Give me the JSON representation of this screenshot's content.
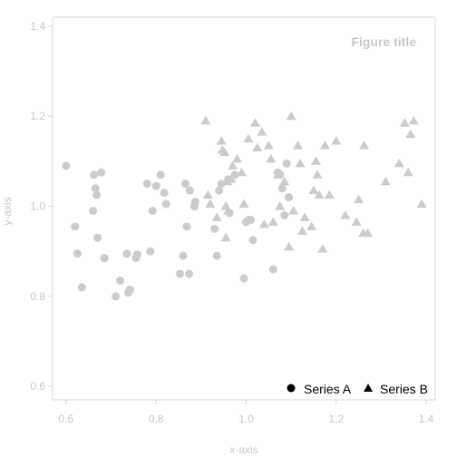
{
  "chart_data": {
    "type": "scatter",
    "title": "Figure title",
    "xlabel": "x-axis",
    "ylabel": "y-axis",
    "xlim": [
      0.57,
      1.42
    ],
    "ylim": [
      0.57,
      1.42
    ],
    "xticks": [
      0.6,
      0.8,
      1.0,
      1.2,
      1.4
    ],
    "yticks": [
      0.6,
      0.8,
      1.0,
      1.2,
      1.4
    ],
    "xtick_labels": [
      "0.6",
      "0.8",
      "1.0",
      "1.2",
      "1.4"
    ],
    "ytick_labels": [
      "0.6",
      "0.8",
      "1.0",
      "1.2",
      "1.4"
    ],
    "grid": false,
    "legend_position": "bottom-right",
    "colors": {
      "marker": "#cccccc",
      "frame": "#d8d8d8",
      "text": "#c8c8c8",
      "legend_marker": "#000000"
    },
    "series": [
      {
        "name": "Series A",
        "marker": "circle",
        "points": [
          [
            0.6,
            1.09
          ],
          [
            0.62,
            0.955
          ],
          [
            0.625,
            0.895
          ],
          [
            0.635,
            0.82
          ],
          [
            0.66,
            0.99
          ],
          [
            0.662,
            1.07
          ],
          [
            0.665,
            1.04
          ],
          [
            0.668,
            1.025
          ],
          [
            0.67,
            0.93
          ],
          [
            0.678,
            1.075
          ],
          [
            0.685,
            0.885
          ],
          [
            0.71,
            0.8
          ],
          [
            0.72,
            0.835
          ],
          [
            0.735,
            0.895
          ],
          [
            0.738,
            0.808
          ],
          [
            0.742,
            0.815
          ],
          [
            0.755,
            0.885
          ],
          [
            0.758,
            0.893
          ],
          [
            0.78,
            1.05
          ],
          [
            0.787,
            0.9
          ],
          [
            0.792,
            0.99
          ],
          [
            0.8,
            1.045
          ],
          [
            0.81,
            1.07
          ],
          [
            0.818,
            1.03
          ],
          [
            0.822,
            1.005
          ],
          [
            0.853,
            0.85
          ],
          [
            0.86,
            0.89
          ],
          [
            0.865,
            1.05
          ],
          [
            0.868,
            0.955
          ],
          [
            0.873,
            0.85
          ],
          [
            0.875,
            1.035
          ],
          [
            0.885,
            1.0
          ],
          [
            0.887,
            1.01
          ],
          [
            0.93,
            0.95
          ],
          [
            0.935,
            0.89
          ],
          [
            0.94,
            1.035
          ],
          [
            0.945,
            1.05
          ],
          [
            0.96,
            1.06
          ],
          [
            0.963,
            0.985
          ],
          [
            0.975,
            1.07
          ],
          [
            0.995,
            0.84
          ],
          [
            1.0,
            0.965
          ],
          [
            1.005,
            0.97
          ],
          [
            1.01,
            0.97
          ],
          [
            1.015,
            0.925
          ],
          [
            1.06,
            0.86
          ],
          [
            1.07,
            1.075
          ],
          [
            1.075,
            1.07
          ],
          [
            1.08,
            1.04
          ],
          [
            1.085,
            0.98
          ],
          [
            1.09,
            1.095
          ],
          [
            1.095,
            1.02
          ]
        ]
      },
      {
        "name": "Series B",
        "marker": "triangle",
        "points": [
          [
            0.91,
            1.19
          ],
          [
            0.915,
            1.025
          ],
          [
            0.92,
            1.005
          ],
          [
            0.935,
            0.975
          ],
          [
            0.945,
            1.145
          ],
          [
            0.947,
            1.125
          ],
          [
            0.952,
            1.12
          ],
          [
            0.955,
            0.93
          ],
          [
            0.955,
            1.0
          ],
          [
            0.958,
            1.055
          ],
          [
            0.96,
            0.99
          ],
          [
            0.967,
            1.06
          ],
          [
            0.97,
            1.09
          ],
          [
            0.98,
            1.105
          ],
          [
            0.99,
            1.075
          ],
          [
            0.995,
            1.005
          ],
          [
            1.005,
            1.15
          ],
          [
            1.02,
            1.185
          ],
          [
            1.025,
            1.13
          ],
          [
            1.035,
            1.165
          ],
          [
            1.04,
            0.96
          ],
          [
            1.05,
            1.135
          ],
          [
            1.055,
            1.105
          ],
          [
            1.06,
            0.965
          ],
          [
            1.07,
            1.07
          ],
          [
            1.075,
            1.0
          ],
          [
            1.085,
            1.055
          ],
          [
            1.095,
            0.91
          ],
          [
            1.1,
            1.2
          ],
          [
            1.105,
            0.99
          ],
          [
            1.115,
            1.135
          ],
          [
            1.12,
            1.095
          ],
          [
            1.125,
            0.945
          ],
          [
            1.13,
            0.975
          ],
          [
            1.145,
            0.955
          ],
          [
            1.15,
            1.035
          ],
          [
            1.155,
            1.1
          ],
          [
            1.158,
            1.07
          ],
          [
            1.162,
            1.025
          ],
          [
            1.17,
            0.905
          ],
          [
            1.175,
            1.135
          ],
          [
            1.185,
            1.025
          ],
          [
            1.2,
            1.145
          ],
          [
            1.22,
            0.98
          ],
          [
            1.245,
            0.965
          ],
          [
            1.25,
            1.015
          ],
          [
            1.26,
            0.94
          ],
          [
            1.262,
            1.135
          ],
          [
            1.27,
            0.94
          ],
          [
            1.31,
            1.055
          ],
          [
            1.34,
            1.095
          ],
          [
            1.352,
            1.185
          ],
          [
            1.36,
            1.075
          ],
          [
            1.365,
            1.16
          ],
          [
            1.372,
            1.19
          ],
          [
            1.39,
            1.005
          ]
        ]
      }
    ]
  }
}
